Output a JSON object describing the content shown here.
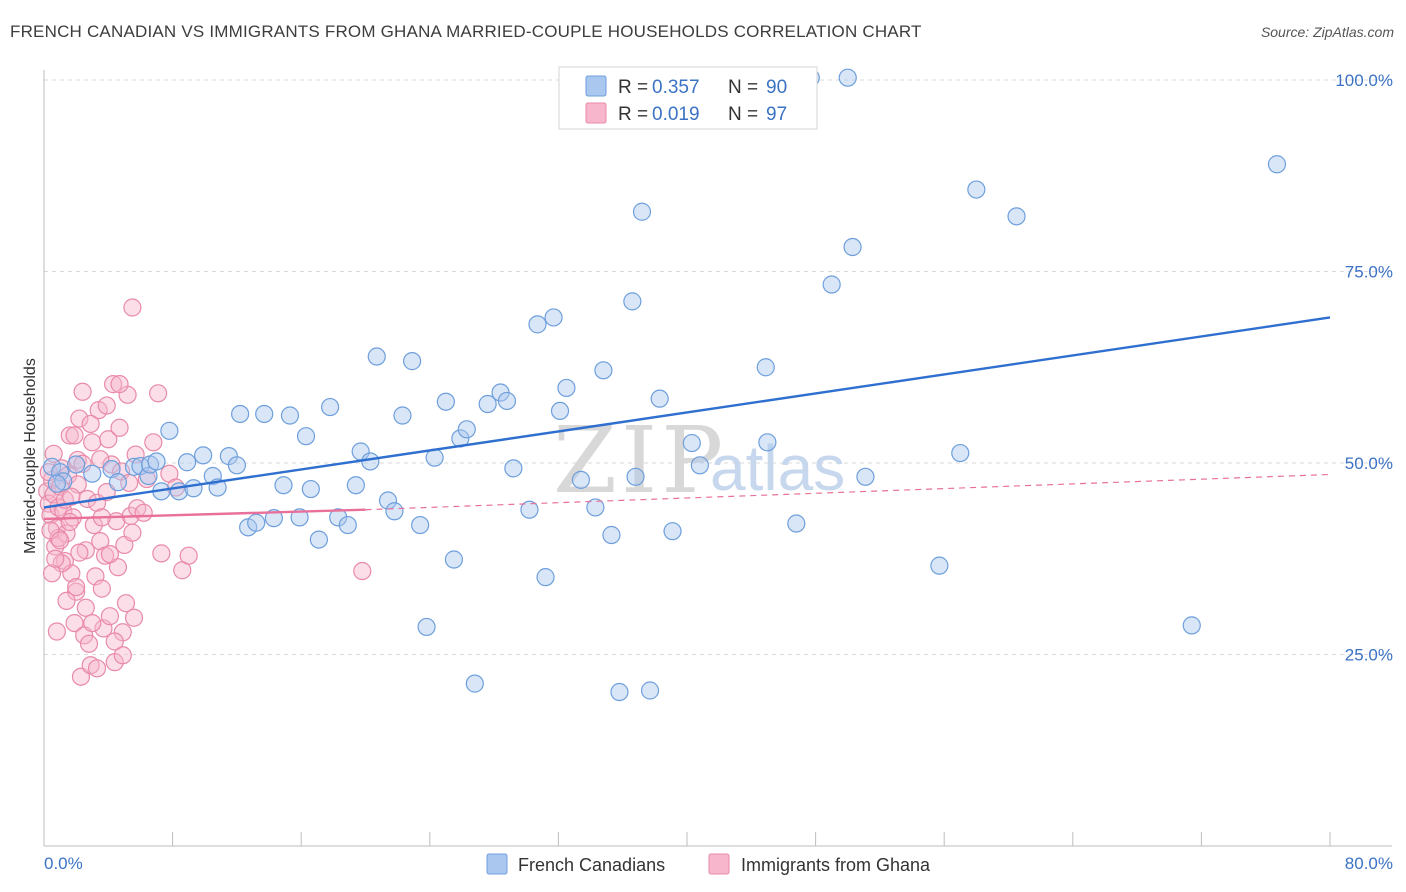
{
  "title": "FRENCH CANADIAN VS IMMIGRANTS FROM GHANA MARRIED-COUPLE HOUSEHOLDS CORRELATION CHART",
  "source": "Source: ZipAtlas.com",
  "watermark": {
    "part1": "ZIP",
    "part2": "atlas"
  },
  "colors": {
    "blue_fill": "#aac8ef",
    "blue_stroke": "#6e9fdc",
    "blue_line": "#2f6fcf",
    "pink_fill": "#f7b6cb",
    "pink_stroke": "#e98aa8",
    "pink_line": "#e8709a",
    "tick_text": "#3b72c4",
    "grid": "#d9d9d9"
  },
  "legend": {
    "rows": [
      {
        "r_label": "R =",
        "r_value": "0.357",
        "n_label": "N =",
        "n_value": "90"
      },
      {
        "r_label": "R =",
        "r_value": "0.019",
        "n_label": "N =",
        "n_value": "97"
      }
    ]
  },
  "bottom_legend": [
    "French Canadians",
    "Immigrants from Ghana"
  ],
  "chart_data": {
    "type": "scatter",
    "xlabel": "",
    "ylabel": "Married-couple Households",
    "xlim": [
      0,
      80
    ],
    "ylim": [
      0,
      102
    ],
    "x_tick_labels": [
      {
        "value": 0,
        "label": "0.0%"
      },
      {
        "value": 80,
        "label": "80.0%"
      }
    ],
    "y_tick_labels": [
      {
        "value": 25,
        "label": "25.0%"
      },
      {
        "value": 50,
        "label": "50.0%"
      },
      {
        "value": 75,
        "label": "75.0%"
      },
      {
        "value": 100,
        "label": "100.0%"
      }
    ],
    "series": [
      {
        "name": "French Canadians",
        "color": "blue",
        "trend": {
          "x0": 0,
          "y0": 44.2,
          "x1": 80,
          "y1": 69.0
        },
        "points": [
          [
            0.5,
            49.5
          ],
          [
            1.0,
            48.8
          ],
          [
            1.2,
            47.6
          ],
          [
            2.0,
            49.8
          ],
          [
            3.0,
            48.6
          ],
          [
            4.2,
            49.2
          ],
          [
            4.6,
            47.5
          ],
          [
            5.6,
            49.5
          ],
          [
            6.0,
            49.6
          ],
          [
            6.5,
            48.3
          ],
          [
            6.6,
            49.8
          ],
          [
            7.0,
            50.2
          ],
          [
            7.3,
            46.3
          ],
          [
            7.8,
            54.2
          ],
          [
            8.4,
            46.3
          ],
          [
            8.9,
            50.1
          ],
          [
            9.3,
            46.7
          ],
          [
            9.9,
            51.0
          ],
          [
            10.5,
            48.3
          ],
          [
            10.8,
            46.8
          ],
          [
            11.5,
            50.9
          ],
          [
            12.0,
            49.7
          ],
          [
            12.2,
            56.4
          ],
          [
            12.7,
            41.6
          ],
          [
            13.2,
            42.2
          ],
          [
            13.7,
            56.4
          ],
          [
            14.3,
            42.8
          ],
          [
            14.9,
            47.1
          ],
          [
            15.3,
            56.2
          ],
          [
            15.9,
            42.9
          ],
          [
            16.3,
            53.5
          ],
          [
            16.6,
            46.6
          ],
          [
            17.1,
            40.0
          ],
          [
            17.8,
            57.3
          ],
          [
            18.3,
            42.9
          ],
          [
            18.9,
            41.9
          ],
          [
            19.4,
            47.1
          ],
          [
            19.7,
            51.5
          ],
          [
            20.3,
            50.2
          ],
          [
            20.7,
            63.9
          ],
          [
            21.4,
            45.1
          ],
          [
            21.8,
            43.7
          ],
          [
            22.3,
            56.2
          ],
          [
            22.9,
            63.3
          ],
          [
            23.4,
            41.9
          ],
          [
            23.8,
            28.6
          ],
          [
            24.3,
            50.7
          ],
          [
            25.0,
            58.0
          ],
          [
            25.5,
            37.4
          ],
          [
            25.9,
            53.2
          ],
          [
            26.3,
            54.4
          ],
          [
            26.8,
            21.2
          ],
          [
            27.6,
            57.7
          ],
          [
            28.4,
            59.2
          ],
          [
            28.8,
            58.1
          ],
          [
            29.2,
            49.3
          ],
          [
            30.2,
            43.9
          ],
          [
            30.7,
            68.1
          ],
          [
            31.2,
            35.1
          ],
          [
            31.7,
            69.0
          ],
          [
            32.1,
            56.8
          ],
          [
            32.5,
            59.8
          ],
          [
            33.4,
            47.8
          ],
          [
            34.3,
            44.2
          ],
          [
            34.8,
            62.1
          ],
          [
            35.3,
            40.6
          ],
          [
            35.8,
            20.1
          ],
          [
            36.6,
            71.1
          ],
          [
            37.2,
            82.8
          ],
          [
            37.7,
            20.3
          ],
          [
            38.3,
            58.4
          ],
          [
            39.1,
            41.1
          ],
          [
            40.3,
            52.6
          ],
          [
            40.8,
            49.7
          ],
          [
            44.9,
            62.5
          ],
          [
            45.0,
            52.7
          ],
          [
            46.8,
            42.1
          ],
          [
            47.7,
            100.3
          ],
          [
            49.0,
            73.3
          ],
          [
            50.0,
            100.3
          ],
          [
            50.3,
            78.2
          ],
          [
            51.1,
            48.2
          ],
          [
            55.7,
            36.6
          ],
          [
            57.0,
            51.3
          ],
          [
            58.0,
            85.7
          ],
          [
            60.5,
            82.2
          ],
          [
            71.4,
            28.8
          ],
          [
            76.7,
            89.0
          ],
          [
            36.8,
            48.2
          ],
          [
            0.8,
            47.3
          ]
        ]
      },
      {
        "name": "Immigrants from Ghana",
        "color": "pink",
        "trend": {
          "x0": 0,
          "y0": 42.7,
          "x1": 20,
          "y1": 43.9
        },
        "trend_extension": {
          "x0": 20,
          "y0": 43.9,
          "x1": 80,
          "y1": 48.5
        },
        "points": [
          [
            0.2,
            46.3
          ],
          [
            0.3,
            44.7
          ],
          [
            0.4,
            43.2
          ],
          [
            0.5,
            47.8
          ],
          [
            0.6,
            45.9
          ],
          [
            0.7,
            39.1
          ],
          [
            0.8,
            41.5
          ],
          [
            0.9,
            44.2
          ],
          [
            1.0,
            46.9
          ],
          [
            1.1,
            49.3
          ],
          [
            1.2,
            43.7
          ],
          [
            1.3,
            37.2
          ],
          [
            1.4,
            40.8
          ],
          [
            1.5,
            48.4
          ],
          [
            1.6,
            53.6
          ],
          [
            1.7,
            35.6
          ],
          [
            1.8,
            42.9
          ],
          [
            1.9,
            29.1
          ],
          [
            2.0,
            33.2
          ],
          [
            2.1,
            50.4
          ],
          [
            2.2,
            55.8
          ],
          [
            2.3,
            22.1
          ],
          [
            2.4,
            59.3
          ],
          [
            2.5,
            27.5
          ],
          [
            2.6,
            38.6
          ],
          [
            2.7,
            45.3
          ],
          [
            2.8,
            26.4
          ],
          [
            2.9,
            23.6
          ],
          [
            3.0,
            52.7
          ],
          [
            3.1,
            41.9
          ],
          [
            3.2,
            35.2
          ],
          [
            3.3,
            44.8
          ],
          [
            3.4,
            56.9
          ],
          [
            3.5,
            39.8
          ],
          [
            3.6,
            33.6
          ],
          [
            3.7,
            28.4
          ],
          [
            3.8,
            37.9
          ],
          [
            3.9,
            46.2
          ],
          [
            4.0,
            53.1
          ],
          [
            4.1,
            30.0
          ],
          [
            4.2,
            49.8
          ],
          [
            4.3,
            60.3
          ],
          [
            4.4,
            24.0
          ],
          [
            4.5,
            42.4
          ],
          [
            4.6,
            36.4
          ],
          [
            4.7,
            54.6
          ],
          [
            4.8,
            48.9
          ],
          [
            4.9,
            27.9
          ],
          [
            5.0,
            39.3
          ],
          [
            5.1,
            31.7
          ],
          [
            5.2,
            58.9
          ],
          [
            5.3,
            47.4
          ],
          [
            5.4,
            43.1
          ],
          [
            5.5,
            70.3
          ],
          [
            5.6,
            29.8
          ],
          [
            5.7,
            51.1
          ],
          [
            5.8,
            44.1
          ],
          [
            0.3,
            48.8
          ],
          [
            0.9,
            40.2
          ],
          [
            1.4,
            32.0
          ],
          [
            2.6,
            31.1
          ],
          [
            3.3,
            23.2
          ],
          [
            3.6,
            42.9
          ],
          [
            4.9,
            24.9
          ],
          [
            5.5,
            40.9
          ],
          [
            6.2,
            43.5
          ],
          [
            6.4,
            47.9
          ],
          [
            6.8,
            52.7
          ],
          [
            7.1,
            59.1
          ],
          [
            7.3,
            38.2
          ],
          [
            7.8,
            48.6
          ],
          [
            8.2,
            46.8
          ],
          [
            8.6,
            36.0
          ],
          [
            9.0,
            37.9
          ],
          [
            1.1,
            36.9
          ],
          [
            1.6,
            42.3
          ],
          [
            2.2,
            38.3
          ],
          [
            0.6,
            51.2
          ],
          [
            0.5,
            35.6
          ],
          [
            1.3,
            45.2
          ],
          [
            2.1,
            47.2
          ],
          [
            3.5,
            50.5
          ],
          [
            4.7,
            60.3
          ],
          [
            19.8,
            35.9
          ],
          [
            2.9,
            55.1
          ],
          [
            1.9,
            53.6
          ],
          [
            0.4,
            41.2
          ],
          [
            1.7,
            45.6
          ],
          [
            4.1,
            38.1
          ],
          [
            3.9,
            57.5
          ],
          [
            2.4,
            49.9
          ],
          [
            1.0,
            39.9
          ],
          [
            0.8,
            28.0
          ],
          [
            2.0,
            33.8
          ],
          [
            3.0,
            29.1
          ],
          [
            0.7,
            37.5
          ],
          [
            4.4,
            26.7
          ]
        ]
      }
    ]
  }
}
